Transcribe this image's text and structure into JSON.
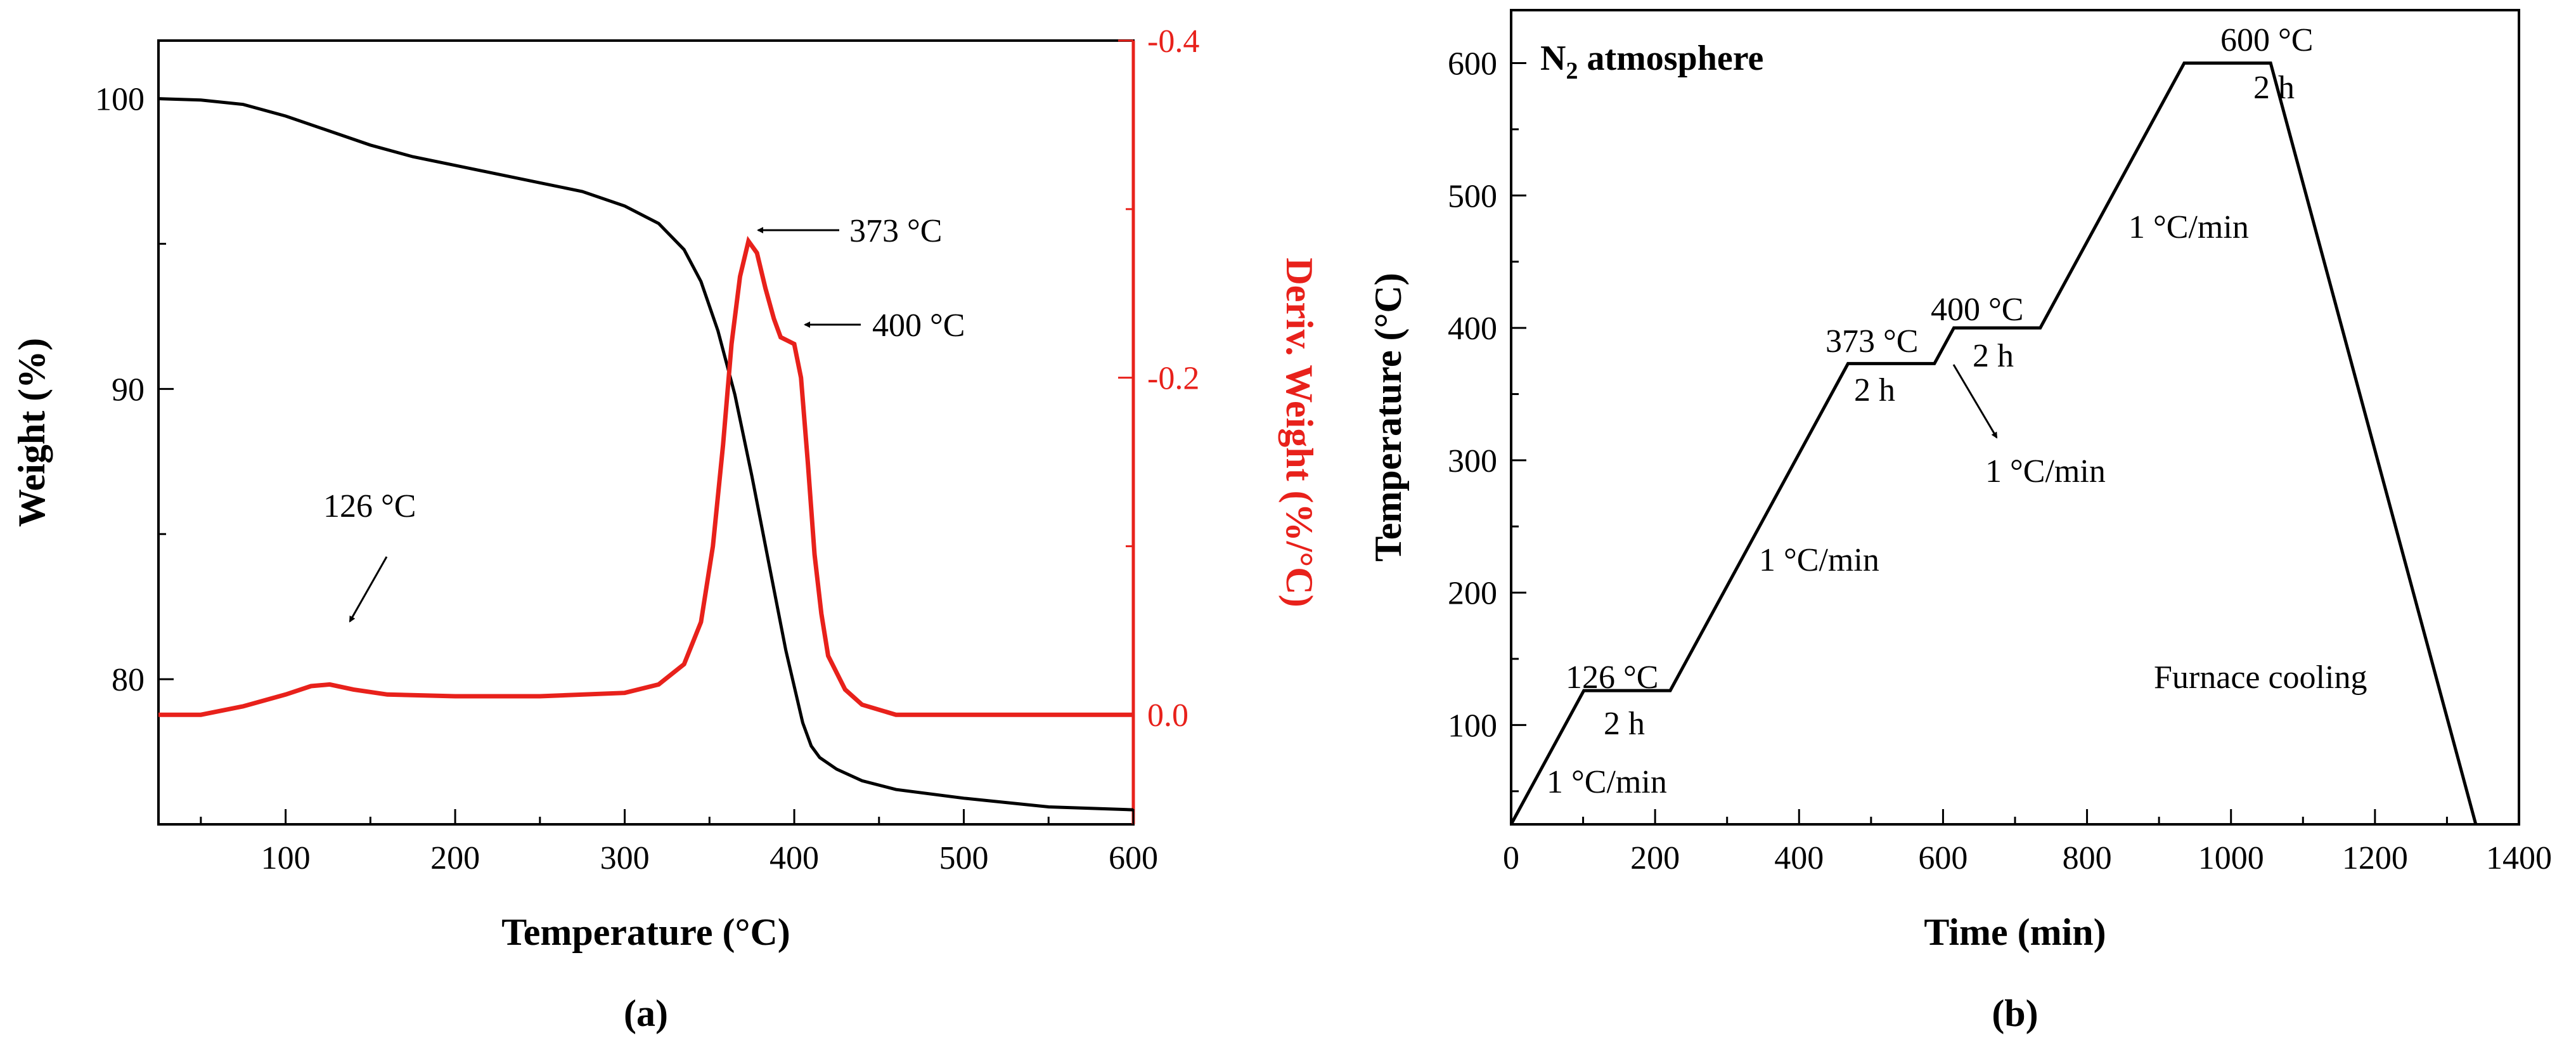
{
  "colors": {
    "black": "#000000",
    "red": "#e8211b"
  },
  "chart_data": [
    {
      "type": "line",
      "panel_label": "(a)",
      "xlabel": "Temperature (°C)",
      "ylabel_left": "Weight (%)",
      "ylabel_right": "Deriv. Weight (%/°C)",
      "xlim": [
        25,
        600
      ],
      "ylim_left": [
        75,
        102
      ],
      "ylim_right": [
        0.065,
        -0.4
      ],
      "x_ticks": [
        100,
        200,
        300,
        400,
        500,
        600
      ],
      "y_left_ticks": [
        80,
        90,
        100
      ],
      "y_right_ticks": [
        0.0,
        -0.2,
        -0.4
      ],
      "y_right_tick_labels": [
        "0.0",
        "-0.2",
        "-0.4"
      ],
      "series": [
        {
          "name": "Weight",
          "axis": "left",
          "color": "#000000",
          "x": [
            25,
            50,
            75,
            100,
            125,
            150,
            175,
            200,
            225,
            250,
            275,
            300,
            320,
            335,
            345,
            355,
            365,
            375,
            385,
            395,
            405,
            410,
            415,
            425,
            440,
            460,
            500,
            550,
            600
          ],
          "y": [
            100,
            99.95,
            99.8,
            99.4,
            98.9,
            98.4,
            98.0,
            97.7,
            97.4,
            97.1,
            96.8,
            96.3,
            95.7,
            94.8,
            93.7,
            92.0,
            89.8,
            87.0,
            84.0,
            81.0,
            78.5,
            77.7,
            77.3,
            76.9,
            76.5,
            76.2,
            75.9,
            75.6,
            75.5
          ]
        },
        {
          "name": "Deriv. Weight",
          "axis": "right",
          "color": "#e8211b",
          "x": [
            25,
            50,
            75,
            100,
            115,
            126,
            140,
            160,
            200,
            250,
            300,
            320,
            335,
            345,
            352,
            358,
            363,
            368,
            373,
            378,
            383,
            388,
            392,
            396,
            400,
            404,
            408,
            412,
            416,
            420,
            430,
            440,
            460,
            500,
            600
          ],
          "y": [
            0.0,
            0.0,
            -0.005,
            -0.012,
            -0.017,
            -0.018,
            -0.015,
            -0.012,
            -0.011,
            -0.011,
            -0.013,
            -0.018,
            -0.03,
            -0.055,
            -0.1,
            -0.16,
            -0.22,
            -0.26,
            -0.281,
            -0.274,
            -0.253,
            -0.235,
            -0.224,
            -0.222,
            -0.22,
            -0.2,
            -0.15,
            -0.095,
            -0.06,
            -0.035,
            -0.015,
            -0.006,
            0.0,
            0.0,
            0.0
          ]
        }
      ],
      "annotations": [
        {
          "text": "373 °C",
          "x": 373,
          "y": -0.281,
          "axis": "right"
        },
        {
          "text": "400 °C",
          "x": 400,
          "y": -0.22,
          "axis": "right"
        },
        {
          "text": "126 °C",
          "x": 126,
          "y": -0.018,
          "axis": "right"
        }
      ]
    },
    {
      "type": "line",
      "panel_label": "(b)",
      "title": "N2 atmosphere",
      "title_main": "N",
      "title_sub": "2",
      "title_rest": " atmosphere",
      "xlabel": "Time (min)",
      "ylabel": "Temperature (°C)",
      "xlim": [
        0,
        1400
      ],
      "ylim": [
        25,
        640
      ],
      "x_ticks": [
        0,
        200,
        400,
        600,
        800,
        1000,
        1200,
        1400
      ],
      "y_ticks": [
        100,
        200,
        300,
        400,
        500,
        600
      ],
      "series": [
        {
          "name": "Heating program",
          "color": "#000000",
          "x": [
            0,
            101,
            221,
            468,
            588,
            615,
            735,
            935,
            1055,
            1340
          ],
          "y": [
            25,
            126,
            126,
            373,
            373,
            400,
            400,
            600,
            600,
            25
          ]
        }
      ],
      "annotations": {
        "hold_126": "126 °C",
        "hold_126_time": "2 h",
        "ramp_1": "1 °C/min",
        "ramp_2": "1 °C/min",
        "hold_373": "373 °C",
        "hold_373_time": "2 h",
        "ramp_3": "1 °C/min",
        "hold_400": "400 °C",
        "hold_400_time": "2 h",
        "ramp_4": "1 °C/min",
        "hold_600": "600 °C",
        "hold_600_time": "2 h",
        "cooling": "Furnace cooling"
      }
    }
  ]
}
